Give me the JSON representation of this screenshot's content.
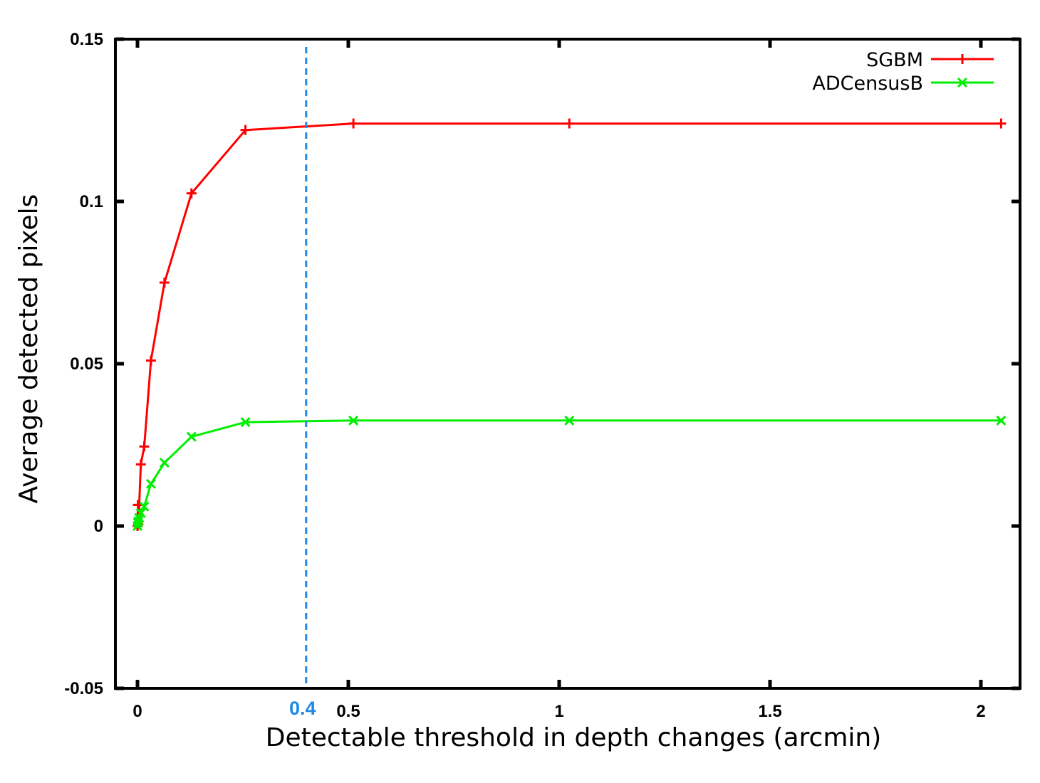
{
  "chart_data": {
    "type": "line",
    "xlabel": "Detectable threshold in depth changes (arcmin)",
    "ylabel": "Average detected pixels",
    "xlim": [
      -0.05,
      2.1
    ],
    "ylim": [
      -0.05,
      0.15
    ],
    "xticks": [
      0,
      0.5,
      1,
      1.5,
      2
    ],
    "xtick_labels": [
      "0",
      "0.5",
      "1",
      "1.5",
      "2"
    ],
    "yticks": [
      -0.05,
      0,
      0.05,
      0.1,
      0.15
    ],
    "ytick_labels": [
      "-0.05",
      "0",
      "0.05",
      "0.1",
      "0.15"
    ],
    "grid": false,
    "legend_position": "top-right",
    "series": [
      {
        "name": "SGBM",
        "color": "#ff0000",
        "marker": "plus",
        "x": [
          0.0,
          0.001,
          0.002,
          0.004,
          0.008,
          0.016,
          0.032,
          0.064,
          0.128,
          0.256,
          0.512,
          1.024,
          2.048
        ],
        "y": [
          0.0,
          0.0065,
          0.0005,
          0.0065,
          0.019,
          0.0245,
          0.051,
          0.075,
          0.1025,
          0.122,
          0.124,
          0.124,
          0.124
        ]
      },
      {
        "name": "ADCensusB",
        "color": "#00ee00",
        "marker": "cross",
        "x": [
          0.0,
          0.001,
          0.002,
          0.004,
          0.008,
          0.016,
          0.032,
          0.064,
          0.128,
          0.256,
          0.512,
          1.024,
          2.048
        ],
        "y": [
          0.0,
          0.001,
          0.0015,
          0.0025,
          0.004,
          0.006,
          0.013,
          0.0195,
          0.0275,
          0.032,
          0.0325,
          0.0325,
          0.0325
        ]
      }
    ],
    "annotations": [
      {
        "type": "vertical-line",
        "x": 0.4,
        "label": "0.4",
        "color": "#1e88e5",
        "style": "dashed"
      }
    ]
  }
}
